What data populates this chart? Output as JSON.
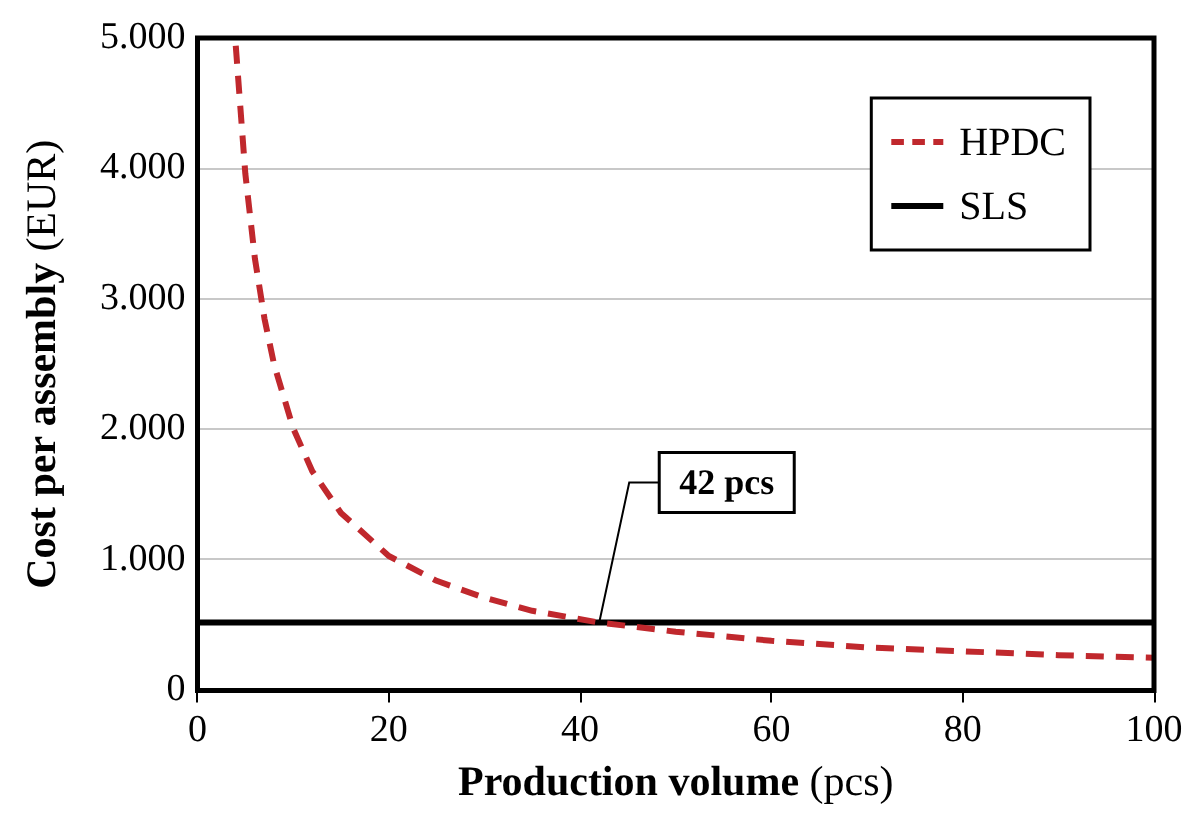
{
  "chart_data": {
    "type": "line",
    "xlabel": "Production volume (pcs)",
    "ylabel": "Cost per assembly (EUR)",
    "xlim": [
      0,
      100
    ],
    "xticks": [
      0,
      20,
      40,
      60,
      80,
      100
    ],
    "ylim": [
      0,
      5000
    ],
    "yticks": [
      0,
      {
        "value": 1000,
        "label": "1.000"
      },
      {
        "value": 2000,
        "label": "2.000"
      },
      {
        "value": 3000,
        "label": "3.000"
      },
      {
        "value": 4000,
        "label": "4.000"
      },
      {
        "value": 5000,
        "label": "5.000"
      }
    ],
    "grid": "y",
    "legend": "top right",
    "marker": "none",
    "series": [
      {
        "name": "HPDC",
        "color": "#c0282d",
        "line_style": "dashed",
        "x": [
          4,
          5,
          6,
          7,
          8,
          10,
          12,
          15,
          20,
          25,
          30,
          35,
          42,
          50,
          60,
          70,
          80,
          90,
          100
        ],
        "values": [
          4940,
          3960,
          3310,
          2850,
          2500,
          2010,
          1680,
          1360,
          1030,
          840,
          710,
          610,
          520,
          450,
          380,
          330,
          300,
          270,
          250
        ]
      },
      {
        "name": "SLS",
        "color": "#000000",
        "line_style": "solid",
        "x": [
          0,
          100
        ],
        "values": [
          520,
          520
        ]
      }
    ],
    "annotations": [
      {
        "text": "42 pcs",
        "x": 42,
        "y": 520
      }
    ]
  }
}
